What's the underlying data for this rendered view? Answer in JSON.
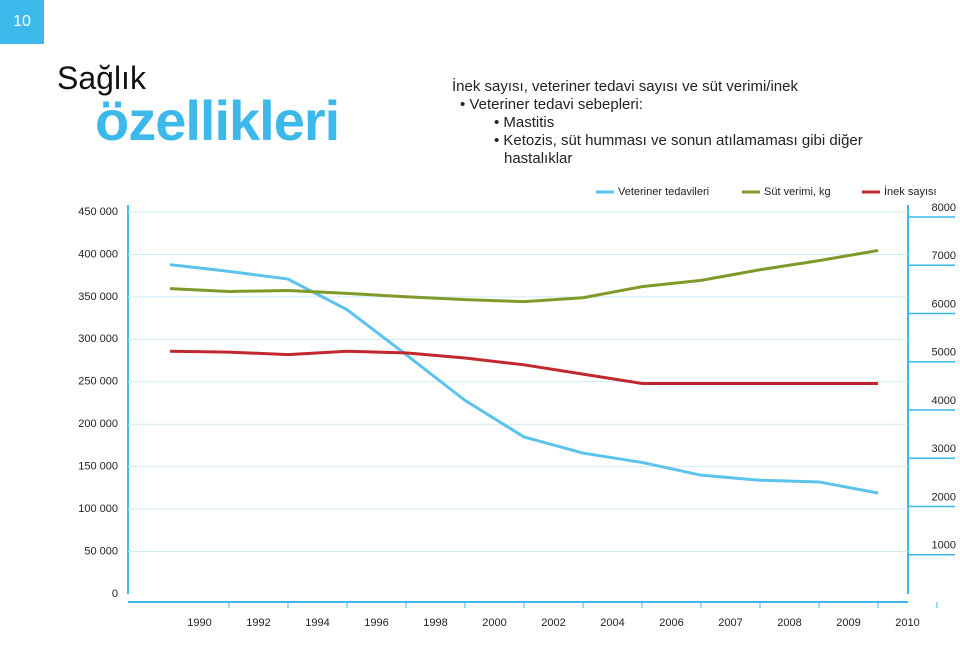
{
  "page_number": "10",
  "header": {
    "title_line1": "Sağlık",
    "title_line2": "özellikleri"
  },
  "intro": {
    "heading": "İnek sayısı, veteriner tedavi sayısı ve süt verimi/inek",
    "bullet": "Veteriner tedavi sebepleri:",
    "sub_bullets": [
      "Mastitis",
      "Ketozis, süt humması ve sonun atılamaması gibi diğer",
      "hastalıklar"
    ]
  },
  "chart_data": {
    "type": "line",
    "categories": [
      "1990",
      "1992",
      "1994",
      "1996",
      "1998",
      "2000",
      "2002",
      "2004",
      "2006",
      "2007",
      "2008",
      "2009",
      "2010"
    ],
    "series": [
      {
        "name": "Veteriner tedavileri",
        "color": "#5bc3ec",
        "values": [
          388000,
          380000,
          371000,
          335000,
          282000,
          228000,
          185000,
          166000,
          155000,
          140000,
          134000,
          132000,
          119000
        ]
      },
      {
        "name": "Süt verimi, kg",
        "color": "#7f9a2a",
        "axis": "y2",
        "values": [
          6330,
          6270,
          6290,
          6230,
          6160,
          6100,
          6060,
          6140,
          6370,
          6500,
          6720,
          6910,
          7120
        ]
      },
      {
        "name": "İnek sayısı",
        "color": "#c1272d",
        "values": [
          286000,
          285000,
          282000,
          286000,
          284000,
          278000,
          270000,
          259000,
          248000,
          248000,
          248000,
          248000,
          248000
        ]
      }
    ],
    "ylim": [
      0,
      450000
    ],
    "yticks": [
      {
        "value": 0,
        "label": "0"
      },
      {
        "value": 50000,
        "label": "50 000"
      },
      {
        "value": 100000,
        "label": "100 000"
      },
      {
        "value": 150000,
        "label": "150 000"
      },
      {
        "value": 200000,
        "label": "200 000"
      },
      {
        "value": 250000,
        "label": "250 000"
      },
      {
        "value": 300000,
        "label": "300 000"
      },
      {
        "value": 350000,
        "label": "350 000"
      },
      {
        "value": 400000,
        "label": "400 000"
      },
      {
        "value": 450000,
        "label": "450 000"
      }
    ],
    "y2lim": [
      0,
      8000
    ],
    "y2ticks": [
      1000,
      2000,
      3000,
      4000,
      5000,
      6000,
      7000,
      8000
    ],
    "grid": true,
    "legend": "top-right"
  }
}
